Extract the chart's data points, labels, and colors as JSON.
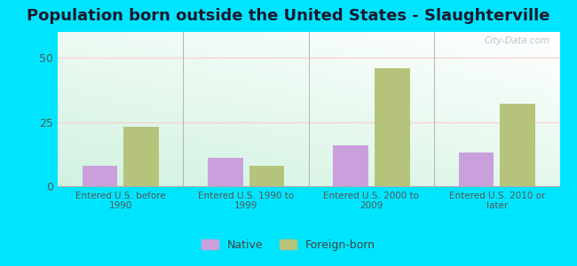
{
  "title": "Population born outside the United States - Slaughterville",
  "categories": [
    "Entered U.S. before\n1990",
    "Entered U.S. 1990 to\n1999",
    "Entered U.S. 2000 to\n2009",
    "Entered U.S. 2010 or\nlater"
  ],
  "native_values": [
    8,
    11,
    16,
    13
  ],
  "foreign_values": [
    23,
    8,
    46,
    32
  ],
  "native_color": "#c9a0dc",
  "foreign_color": "#b5c47a",
  "ylim": [
    0,
    60
  ],
  "yticks": [
    0,
    25,
    50
  ],
  "background_top": "#f0f8f0",
  "background_bottom": "#c8eedd",
  "outer_background": "#00e5ff",
  "grid_color": "#e8e8e8",
  "title_fontsize": 13,
  "title_color": "#1a1a2e",
  "tick_label_color": "#555555",
  "axis_label_color": "#555555",
  "legend_native": "Native",
  "legend_foreign": "Foreign-born",
  "watermark": "City-Data.com"
}
